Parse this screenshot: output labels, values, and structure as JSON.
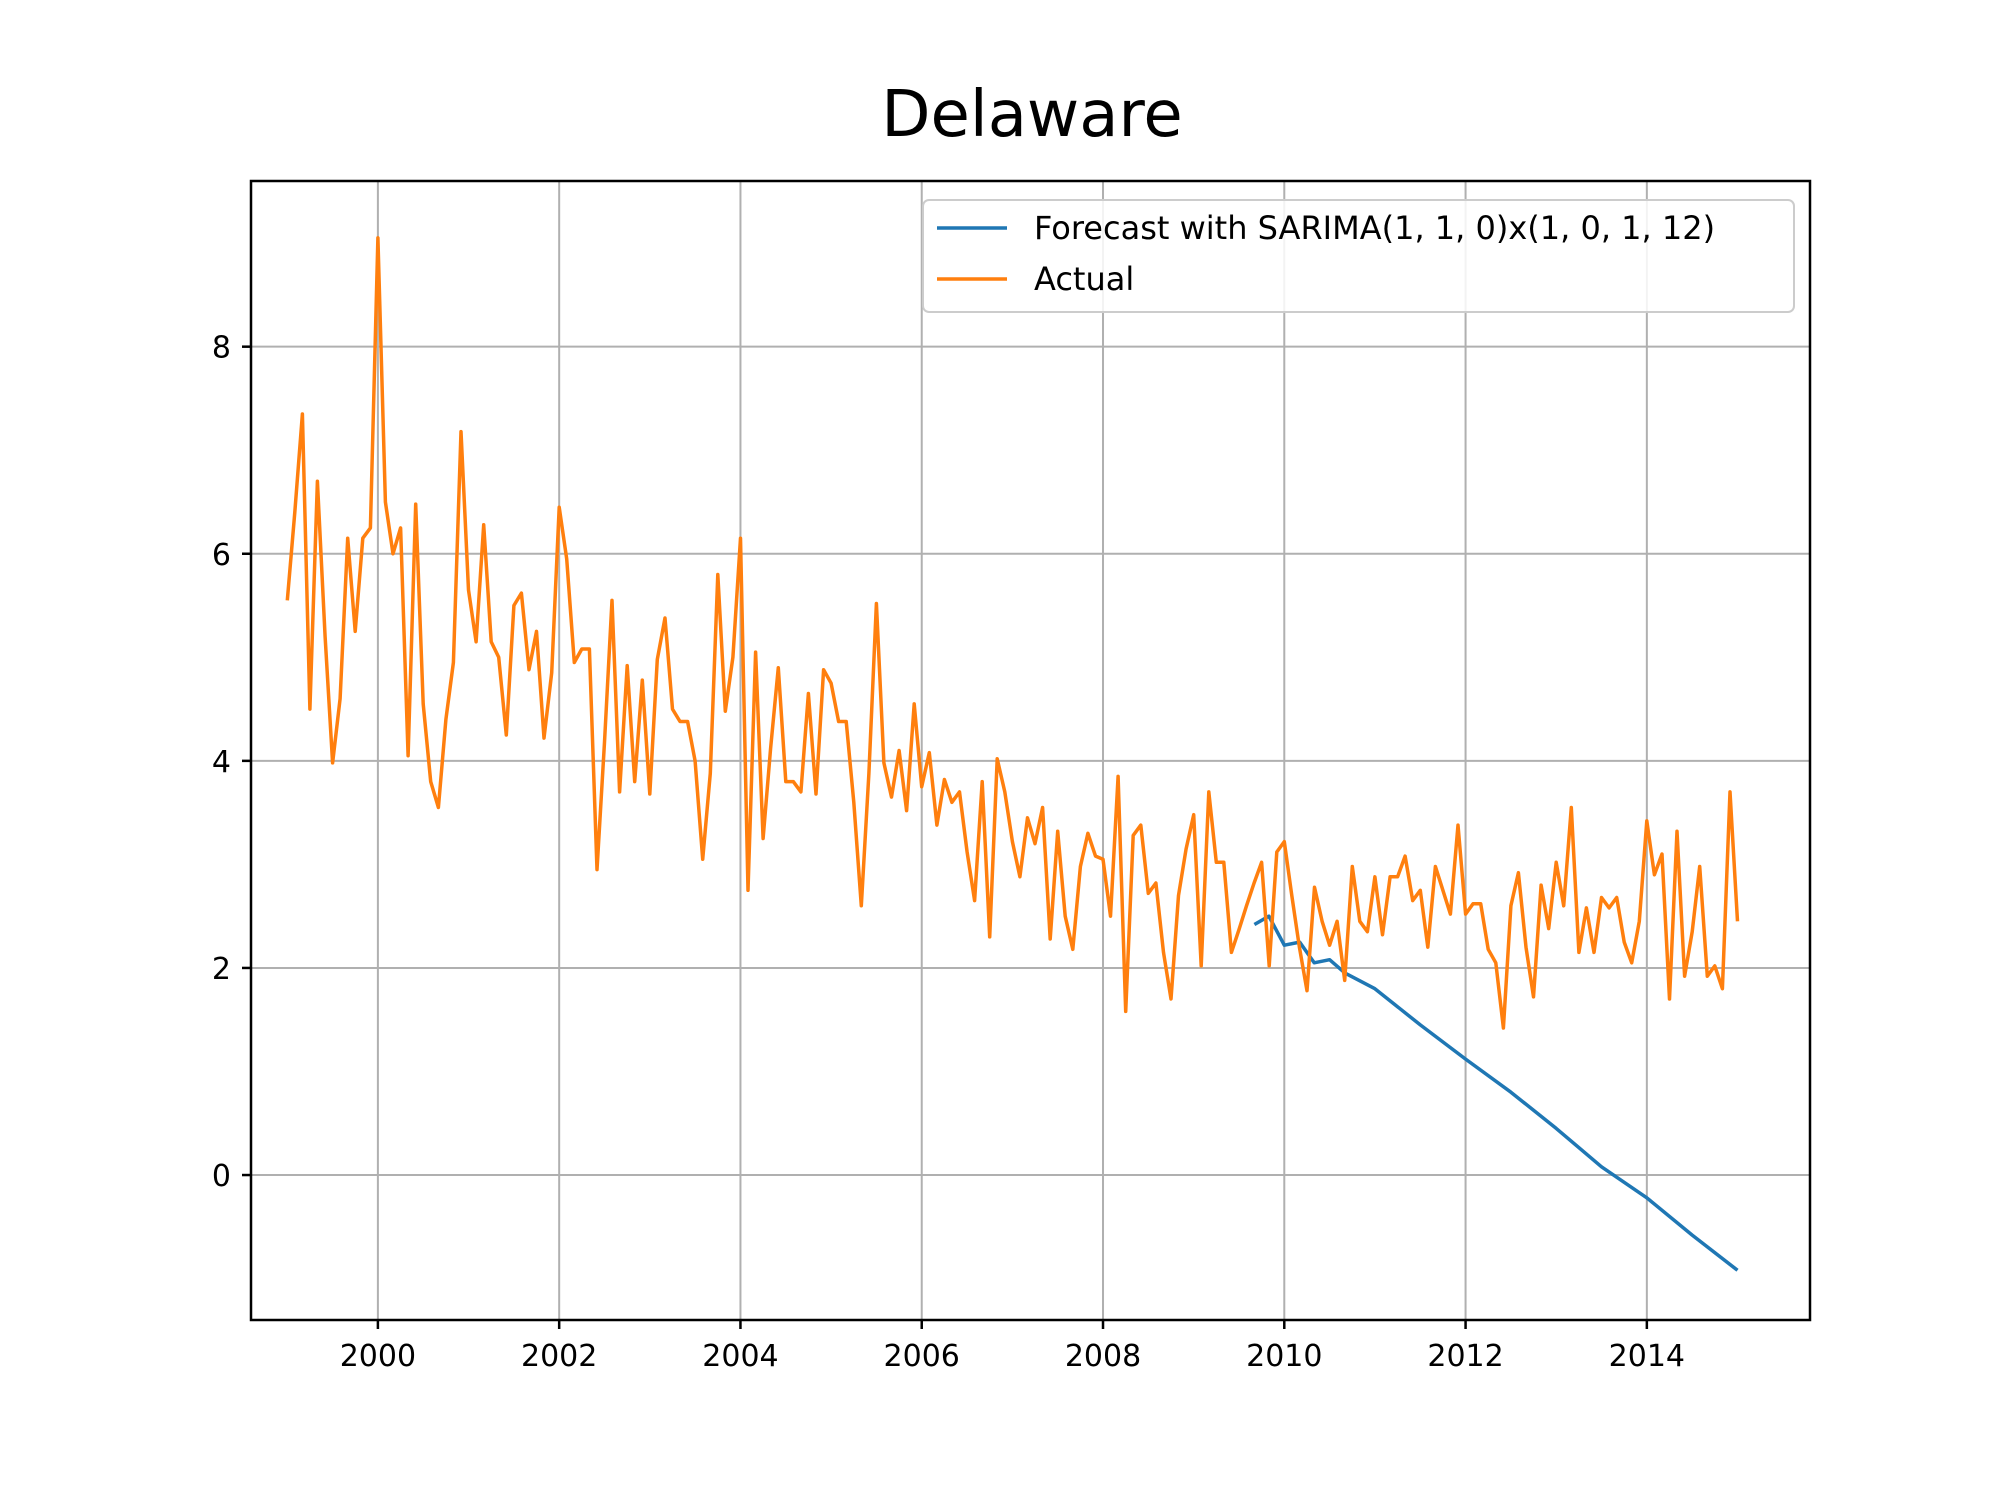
{
  "chart_data": {
    "type": "line",
    "title": "Delaware",
    "xlabel": "",
    "ylabel": "",
    "xlim": [
      1998.6,
      2015.8
    ],
    "ylim": [
      -1.4,
      9.6
    ],
    "x_ticks": [
      2000,
      2002,
      2004,
      2006,
      2008,
      2010,
      2012,
      2014
    ],
    "y_ticks": [
      0,
      2,
      4,
      6,
      8
    ],
    "grid": true,
    "legend_position": "top-right",
    "colors": {
      "forecast": "#1f77b4",
      "actual": "#ff7f0e"
    },
    "series": [
      {
        "name": "Forecast with SARIMA(1, 1, 0)x(1, 0, 1, 12)",
        "x": [
          2009.67,
          2009.83,
          2010.0,
          2010.17,
          2010.33,
          2010.5,
          2010.67,
          2011.0,
          2011.5,
          2012.0,
          2012.5,
          2013.0,
          2013.5,
          2014.0,
          2014.5,
          2015.0
        ],
        "y": [
          2.42,
          2.5,
          2.22,
          2.25,
          2.05,
          2.08,
          1.95,
          1.8,
          1.45,
          1.12,
          0.8,
          0.45,
          0.08,
          -0.22,
          -0.58,
          -0.92
        ]
      },
      {
        "name": "Actual",
        "x": [
          1999.0,
          1999.083,
          1999.167,
          1999.25,
          1999.333,
          1999.417,
          1999.5,
          1999.583,
          1999.667,
          1999.75,
          1999.833,
          1999.917,
          2000.0,
          2000.083,
          2000.167,
          2000.25,
          2000.333,
          2000.417,
          2000.5,
          2000.583,
          2000.667,
          2000.75,
          2000.833,
          2000.917,
          2001.0,
          2001.083,
          2001.167,
          2001.25,
          2001.333,
          2001.417,
          2001.5,
          2001.583,
          2001.667,
          2001.75,
          2001.833,
          2001.917,
          2002.0,
          2002.083,
          2002.167,
          2002.25,
          2002.333,
          2002.417,
          2002.5,
          2002.583,
          2002.667,
          2002.75,
          2002.833,
          2002.917,
          2003.0,
          2003.083,
          2003.167,
          2003.25,
          2003.333,
          2003.417,
          2003.5,
          2003.583,
          2003.667,
          2003.75,
          2003.833,
          2003.917,
          2004.0,
          2004.083,
          2004.167,
          2004.25,
          2004.333,
          2004.417,
          2004.5,
          2004.583,
          2004.667,
          2004.75,
          2004.833,
          2004.917,
          2005.0,
          2005.083,
          2005.167,
          2005.25,
          2005.333,
          2005.417,
          2005.5,
          2005.583,
          2005.667,
          2005.75,
          2005.833,
          2005.917,
          2006.0,
          2006.083,
          2006.167,
          2006.25,
          2006.333,
          2006.417,
          2006.5,
          2006.583,
          2006.667,
          2006.75,
          2006.833,
          2006.917,
          2007.0,
          2007.083,
          2007.167,
          2007.25,
          2007.333,
          2007.417,
          2007.5,
          2007.583,
          2007.667,
          2007.75,
          2007.833,
          2007.917,
          2008.0,
          2008.083,
          2008.167,
          2008.25,
          2008.333,
          2008.417,
          2008.5,
          2008.583,
          2008.667,
          2008.75,
          2008.833,
          2008.917,
          2009.0,
          2009.083,
          2009.167,
          2009.25,
          2009.333,
          2009.417,
          2009.5,
          2009.583,
          2009.667,
          2009.75,
          2009.833,
          2009.917,
          2010.0,
          2010.083,
          2010.167,
          2010.25,
          2010.333,
          2010.417,
          2010.5,
          2010.583,
          2010.667,
          2010.75,
          2010.833,
          2010.917,
          2011.0,
          2011.083,
          2011.167,
          2011.25,
          2011.333,
          2011.417,
          2011.5,
          2011.583,
          2011.667,
          2011.75,
          2011.833,
          2011.917,
          2012.0,
          2012.083,
          2012.167,
          2012.25,
          2012.333,
          2012.417,
          2012.5,
          2012.583,
          2012.667,
          2012.75,
          2012.833,
          2012.917,
          2013.0,
          2013.083,
          2013.167,
          2013.25,
          2013.333,
          2013.417,
          2013.5,
          2013.583,
          2013.667,
          2013.75,
          2013.833,
          2013.917,
          2014.0,
          2014.083,
          2014.167,
          2014.25,
          2014.333,
          2014.417,
          2014.5,
          2014.583,
          2014.667,
          2014.75,
          2014.833,
          2014.917,
          2015.0
        ],
        "y": [
          5.55,
          6.4,
          7.35,
          4.5,
          6.7,
          5.2,
          3.98,
          4.6,
          6.15,
          5.25,
          6.15,
          6.25,
          9.05,
          6.5,
          6.0,
          6.25,
          4.05,
          6.48,
          4.55,
          3.8,
          3.55,
          4.4,
          4.95,
          7.18,
          5.65,
          5.15,
          6.28,
          5.15,
          5.0,
          4.25,
          5.5,
          5.62,
          4.88,
          5.25,
          4.22,
          4.85,
          6.45,
          5.95,
          4.95,
          5.08,
          5.08,
          2.95,
          4.18,
          5.55,
          3.7,
          4.92,
          3.8,
          4.78,
          3.68,
          4.98,
          5.38,
          4.5,
          4.38,
          4.38,
          4.0,
          3.05,
          3.88,
          5.8,
          4.48,
          5.0,
          6.15,
          2.75,
          5.05,
          3.25,
          4.12,
          4.9,
          3.8,
          3.8,
          3.7,
          4.65,
          3.68,
          4.88,
          4.75,
          4.38,
          4.38,
          3.6,
          2.6,
          3.88,
          5.52,
          3.98,
          3.65,
          4.1,
          3.52,
          4.55,
          3.75,
          4.08,
          3.38,
          3.82,
          3.6,
          3.7,
          3.12,
          2.65,
          3.8,
          2.3,
          4.02,
          3.7,
          3.22,
          2.88,
          3.45,
          3.2,
          3.55,
          2.28,
          3.32,
          2.5,
          2.18,
          2.98,
          3.3,
          3.08,
          3.05,
          2.5,
          3.85,
          1.58,
          3.28,
          3.38,
          2.72,
          2.82,
          2.15,
          1.7,
          2.7,
          3.15,
          3.48,
          2.02,
          3.7,
          3.02,
          3.02,
          2.15,
          2.37,
          2.6,
          2.82,
          3.02,
          2.02,
          3.12,
          3.22,
          2.7,
          2.2,
          1.78,
          2.78,
          2.45,
          2.22,
          2.45,
          1.88,
          2.98,
          2.45,
          2.35,
          2.88,
          2.32,
          2.88,
          2.88,
          3.08,
          2.65,
          2.75,
          2.2,
          2.98,
          2.75,
          2.52,
          3.38,
          2.52,
          2.62,
          2.62,
          2.18,
          2.05,
          1.42,
          2.6,
          2.92,
          2.2,
          1.72,
          2.8,
          2.38,
          3.02,
          2.6,
          3.55,
          2.15,
          2.58,
          2.15,
          2.68,
          2.58,
          2.68,
          2.25,
          2.05,
          2.45,
          3.42,
          2.9,
          3.1,
          1.7,
          3.32,
          1.92,
          2.35,
          2.98,
          1.92,
          2.02,
          1.8,
          3.7,
          2.45
        ]
      }
    ]
  }
}
